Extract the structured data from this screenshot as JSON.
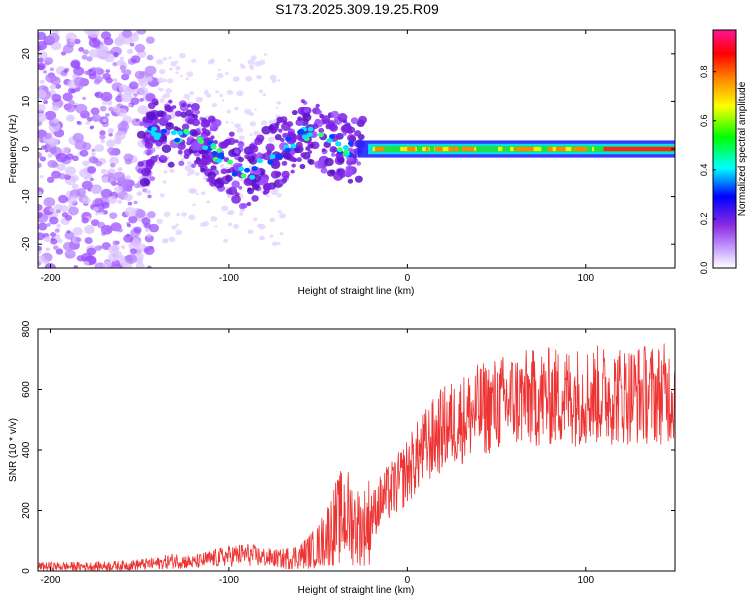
{
  "title": "S173.2025.309.19.25.R09",
  "chart_data": [
    {
      "type": "heatmap",
      "xlabel": "Height of straight line (km)",
      "ylabel": "Frequency (Hz)",
      "xlim": [
        -207,
        150
      ],
      "ylim": [
        -25,
        25
      ],
      "xticks": [
        -200,
        -100,
        0,
        100
      ],
      "yticks": [
        -20,
        -10,
        0,
        10,
        20
      ],
      "colorbar": {
        "label": "Normalized spectral amplitude",
        "range": [
          0,
          0.97
        ],
        "ticks": [
          0.0,
          0.2,
          0.4,
          0.6,
          0.8
        ],
        "colormap": [
          "#ffffff",
          "#c8a0ff",
          "#8a2be2",
          "#0000ff",
          "#00ffff",
          "#00ff00",
          "#ffff00",
          "#ff8000",
          "#ff0000",
          "#ff1493"
        ]
      },
      "trace": {
        "description_points": [
          {
            "x": -145,
            "freq": 3
          },
          {
            "x": -120,
            "freq": 3
          },
          {
            "x": -100,
            "freq": -3
          },
          {
            "x": -90,
            "freq": -6
          },
          {
            "x": -70,
            "freq": 0
          },
          {
            "x": -55,
            "freq": 4
          },
          {
            "x": -35,
            "freq": 0
          },
          {
            "x": -25,
            "freq": 0
          },
          {
            "x": 0,
            "freq": 0
          },
          {
            "x": 150,
            "freq": 0
          }
        ]
      }
    },
    {
      "type": "line",
      "xlabel": "Height of straight line (km)",
      "ylabel": "SNR (10 * v/v)",
      "xlim": [
        -207,
        150
      ],
      "ylim": [
        0,
        800
      ],
      "xticks": [
        -200,
        -100,
        0,
        100
      ],
      "yticks": [
        0,
        200,
        400,
        600,
        800
      ],
      "color": "#ee3333",
      "series": [
        {
          "name": "SNR",
          "x": [
            -207,
            -180,
            -160,
            -140,
            -130,
            -120,
            -110,
            -100,
            -90,
            -80,
            -70,
            -60,
            -50,
            -45,
            -40,
            -35,
            -30,
            -25,
            -20,
            -15,
            -10,
            -5,
            0,
            5,
            10,
            15,
            20,
            30,
            40,
            50,
            60,
            70,
            80,
            90,
            100,
            110,
            120,
            130,
            140,
            150
          ],
          "y": [
            15,
            15,
            18,
            25,
            35,
            28,
            40,
            50,
            55,
            45,
            40,
            50,
            80,
            120,
            160,
            190,
            160,
            140,
            180,
            230,
            260,
            290,
            330,
            370,
            410,
            440,
            470,
            500,
            530,
            550,
            565,
            570,
            575,
            578,
            580,
            582,
            583,
            585,
            586,
            588
          ]
        }
      ]
    }
  ]
}
